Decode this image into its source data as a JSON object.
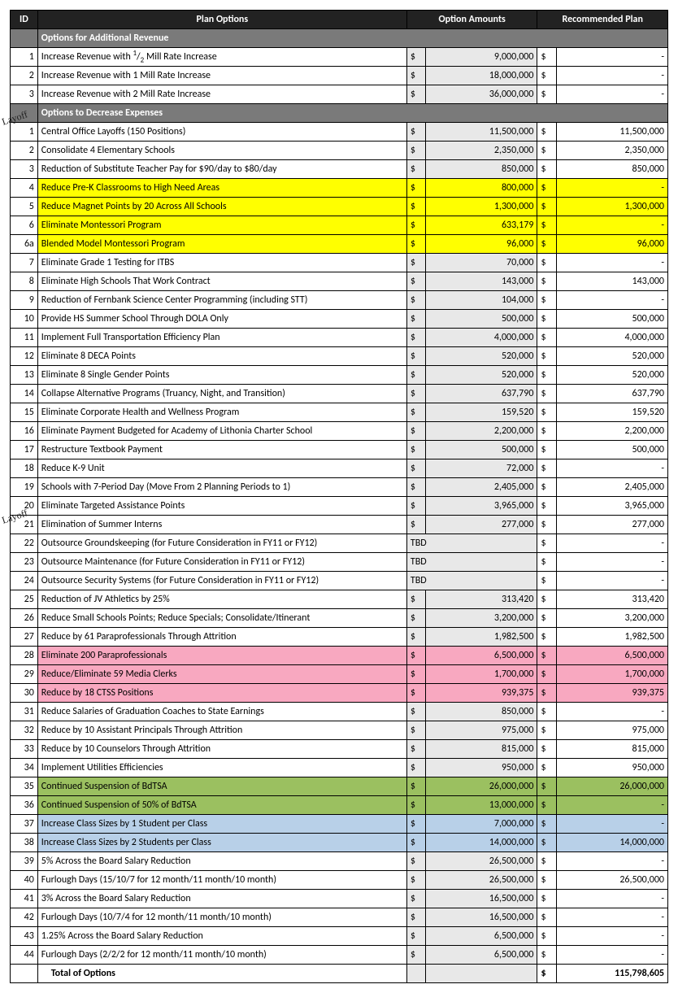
{
  "annotations": [
    "Layoff",
    "Layoff"
  ],
  "headers": {
    "id": "ID",
    "plan": "Plan Options",
    "amount": "Option Amounts",
    "rec": "Recommended Plan"
  },
  "sections": {
    "revenue": "Options for Additional Revenue",
    "expense": "Options to Decrease Expenses"
  },
  "half": "¹/₂",
  "revenue_rows": [
    {
      "id": "1",
      "desc_prefix": "Increase Revenue with ",
      "desc_suffix": " Mill Rate Increase",
      "half": true,
      "amt": "9,000,000",
      "rec": "-"
    },
    {
      "id": "2",
      "desc": "Increase Revenue with 1 Mill Rate Increase",
      "amt": "18,000,000",
      "rec": "-"
    },
    {
      "id": "3",
      "desc": "Increase Revenue with 2 Mill Rate Increase",
      "amt": "36,000,000",
      "rec": "-"
    }
  ],
  "expense_rows": [
    {
      "id": "1",
      "desc": "Central Office Layoffs (150 Positions)",
      "amt": "11,500,000",
      "rec": "11,500,000"
    },
    {
      "id": "2",
      "desc": "Consolidate 4 Elementary Schools",
      "amt": "2,350,000",
      "rec": "2,350,000"
    },
    {
      "id": "3",
      "desc": "Reduction of Substitute Teacher Pay for $90/day to $80/day",
      "amt": "850,000",
      "rec": "850,000"
    },
    {
      "id": "4",
      "desc": "Reduce Pre-K Classrooms to High Need Areas",
      "amt": "800,000",
      "rec": "-",
      "hl": "yellow"
    },
    {
      "id": "5",
      "desc": "Reduce Magnet Points by 20 Across All Schools",
      "amt": "1,300,000",
      "rec": "1,300,000",
      "hl": "yellow"
    },
    {
      "id": "6",
      "desc": "Eliminate Montessori Program",
      "amt": "633,179",
      "rec": "-",
      "hl": "yellow"
    },
    {
      "id": "6a",
      "desc": "Blended Model Montessori Program",
      "amt": "96,000",
      "rec": "96,000",
      "hl": "yellow"
    },
    {
      "id": "7",
      "desc": "Eliminate Grade 1 Testing for ITBS",
      "amt": "70,000",
      "rec": "-"
    },
    {
      "id": "8",
      "desc": "Eliminate High Schools That Work Contract",
      "amt": "143,000",
      "rec": "143,000"
    },
    {
      "id": "9",
      "desc": "Reduction of Fernbank Science Center Programming (including STT)",
      "amt": "104,000",
      "rec": "-"
    },
    {
      "id": "10",
      "desc": "Provide HS Summer School Through DOLA Only",
      "amt": "500,000",
      "rec": "500,000"
    },
    {
      "id": "11",
      "desc": "Implement Full Transportation Efficiency Plan",
      "amt": "4,000,000",
      "rec": "4,000,000"
    },
    {
      "id": "12",
      "desc": "Eliminate 8 DECA Points",
      "amt": "520,000",
      "rec": "520,000"
    },
    {
      "id": "13",
      "desc": "Eliminate 8 Single Gender Points",
      "amt": "520,000",
      "rec": "520,000"
    },
    {
      "id": "14",
      "desc": "Collapse Alternative Programs (Truancy, Night, and Transition)",
      "amt": "637,790",
      "rec": "637,790"
    },
    {
      "id": "15",
      "desc": "Eliminate Corporate Health and Wellness Program",
      "amt": "159,520",
      "rec": "159,520"
    },
    {
      "id": "16",
      "desc": "Eliminate Payment Budgeted for Academy of Lithonia Charter School",
      "amt": "2,200,000",
      "rec": "2,200,000"
    },
    {
      "id": "17",
      "desc": "Restructure Textbook Payment",
      "amt": "500,000",
      "rec": "500,000"
    },
    {
      "id": "18",
      "desc": "Reduce K-9 Unit",
      "amt": "72,000",
      "rec": "-"
    },
    {
      "id": "19",
      "desc": "Schools with 7-Period Day (Move From 2 Planning Periods to 1)",
      "amt": "2,405,000",
      "rec": "2,405,000"
    },
    {
      "id": "20",
      "desc": "Eliminate Targeted Assistance Points",
      "amt": "3,965,000",
      "rec": "3,965,000"
    },
    {
      "id": "21",
      "desc": "Elimination of Summer Interns",
      "amt": "277,000",
      "rec": "277,000"
    },
    {
      "id": "22",
      "desc": "Outsource Groundskeeping (for Future Consideration in FY11 or FY12)",
      "amt_text": "TBD",
      "rec": "-"
    },
    {
      "id": "23",
      "desc": "Outsource Maintenance (for Future Consideration in FY11 or FY12)",
      "amt_text": "TBD",
      "rec": "-"
    },
    {
      "id": "24",
      "desc": "Outsource Security Systems (for Future Consideration in FY11 or FY12)",
      "amt_text": "TBD",
      "rec": "-"
    },
    {
      "id": "25",
      "desc": "Reduction of JV Athletics by 25%",
      "amt": "313,420",
      "rec": "313,420"
    },
    {
      "id": "26",
      "desc": "Reduce Small Schools Points; Reduce Specials; Consolidate/Itinerant",
      "amt": "3,200,000",
      "rec": "3,200,000"
    },
    {
      "id": "27",
      "desc": "Reduce by 61 Paraprofessionals Through Attrition",
      "amt": "1,982,500",
      "rec": "1,982,500"
    },
    {
      "id": "28",
      "desc": "Eliminate 200 Paraprofessionals",
      "amt": "6,500,000",
      "rec": "6,500,000",
      "hl": "pink"
    },
    {
      "id": "29",
      "desc": "Reduce/Eliminate 59 Media Clerks",
      "amt": "1,700,000",
      "rec": "1,700,000",
      "hl": "pink"
    },
    {
      "id": "30",
      "desc": "Reduce by 18 CTSS Positions",
      "amt": "939,375",
      "rec": "939,375",
      "hl": "pink"
    },
    {
      "id": "31",
      "desc": "Reduce Salaries of Graduation Coaches to State Earnings",
      "amt": "850,000",
      "rec": "-"
    },
    {
      "id": "32",
      "desc": "Reduce by 10 Assistant Principals Through Attrition",
      "amt": "975,000",
      "rec": "975,000"
    },
    {
      "id": "33",
      "desc": "Reduce by 10 Counselors Through Attrition",
      "amt": "815,000",
      "rec": "815,000"
    },
    {
      "id": "34",
      "desc": "Implement Utilities Efficiencies",
      "amt": "950,000",
      "rec": "950,000"
    },
    {
      "id": "35",
      "desc": "Continued Suspension of BdTSA",
      "amt": "26,000,000",
      "rec": "26,000,000",
      "hl": "green"
    },
    {
      "id": "36",
      "desc": "Continued Suspension of 50% of BdTSA",
      "amt": "13,000,000",
      "rec": "-",
      "hl": "green"
    },
    {
      "id": "37",
      "desc": "Increase Class Sizes by 1 Student per Class",
      "amt": "7,000,000",
      "rec": "-",
      "hl": "blue"
    },
    {
      "id": "38",
      "desc": "Increase Class Sizes by 2 Students per Class",
      "amt": "14,000,000",
      "rec": "14,000,000",
      "hl": "blue"
    },
    {
      "id": "39",
      "desc": "5% Across the Board Salary Reduction",
      "amt": "26,500,000",
      "rec": "-"
    },
    {
      "id": "40",
      "desc": "Furlough Days (15/10/7 for 12 month/11 month/10 month)",
      "amt": "26,500,000",
      "rec": "26,500,000"
    },
    {
      "id": "41",
      "desc": "3% Across the Board Salary Reduction",
      "amt": "16,500,000",
      "rec": "-"
    },
    {
      "id": "42",
      "desc": "Furlough Days (10/7/4 for 12 month/11 month/10 month)",
      "amt": "16,500,000",
      "rec": "-"
    },
    {
      "id": "43",
      "desc": "1.25% Across the Board Salary Reduction",
      "amt": "6,500,000",
      "rec": "-"
    },
    {
      "id": "44",
      "desc": "Furlough Days (2/2/2 for 12 month/11 month/10 month)",
      "amt": "6,500,000",
      "rec": "-"
    }
  ],
  "total": {
    "label": "Total of Options",
    "value": "115,798,605"
  },
  "styling": {
    "header_bg": "#222222",
    "header_fg": "#ffffff",
    "section_bg": "#7a7a7a",
    "section_fg": "#ffffff",
    "amount_bg": "#e8e8e8",
    "hl_yellow": "#ffff00",
    "hl_pink": "#f8a8c0",
    "hl_green": "#9bc060",
    "hl_blue": "#b8d0e8",
    "font_family": "Calibri",
    "base_font_size_pt": 9
  }
}
